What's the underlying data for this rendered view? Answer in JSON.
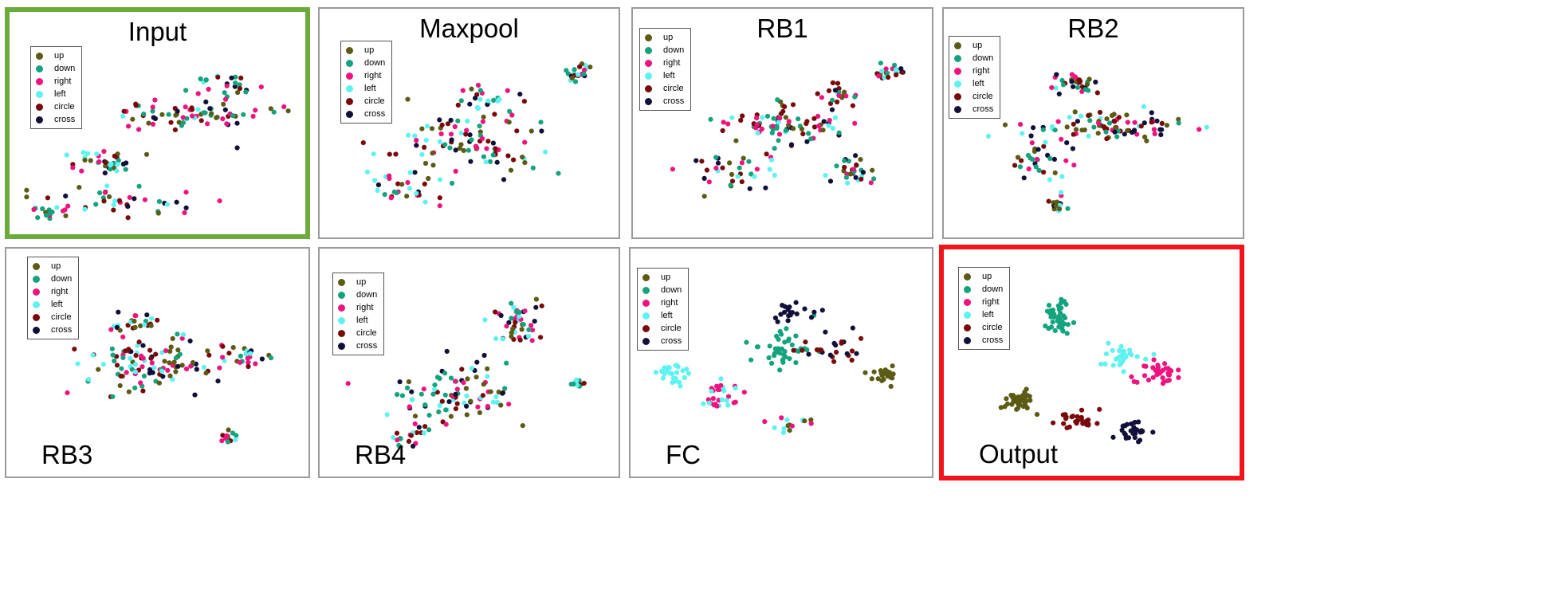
{
  "figure": {
    "class_colors": {
      "up": "#5c5a14",
      "down": "#14a37f",
      "right": "#f0137f",
      "left": "#5ff2f2",
      "circle": "#7a0a0a",
      "cross": "#10103a"
    },
    "highlight_colors": {
      "input": "#6aab3c",
      "output": "#f2141a"
    }
  },
  "chart_data": [
    {
      "type": "scatter",
      "title": "Input",
      "legend": [
        "up",
        "down",
        "right",
        "left",
        "circle",
        "cross"
      ],
      "legend_position": "top-left",
      "highlight": "input",
      "clusters": [
        {
          "cx": 0.35,
          "cy": 0.12,
          "sx": 0.3,
          "sy": 0.08,
          "n": 40,
          "mix": [
            "up",
            "down",
            "right",
            "left",
            "circle",
            "cross"
          ]
        },
        {
          "cx": 0.6,
          "cy": 0.6,
          "sx": 0.28,
          "sy": 0.09,
          "n": 70,
          "mix": [
            "up",
            "down",
            "right",
            "left",
            "circle",
            "cross"
          ]
        },
        {
          "cx": 0.3,
          "cy": 0.35,
          "sx": 0.12,
          "sy": 0.06,
          "n": 35,
          "mix": [
            "up",
            "down",
            "right",
            "left",
            "circle",
            "cross"
          ]
        },
        {
          "cx": 0.08,
          "cy": 0.05,
          "sx": 0.06,
          "sy": 0.03,
          "n": 15,
          "mix": [
            "up",
            "down",
            "right",
            "circle"
          ]
        },
        {
          "cx": 0.75,
          "cy": 0.78,
          "sx": 0.12,
          "sy": 0.06,
          "n": 25,
          "mix": [
            "up",
            "down",
            "right",
            "left",
            "circle",
            "cross"
          ]
        }
      ]
    },
    {
      "type": "scatter",
      "title": "Maxpool",
      "legend": [
        "up",
        "down",
        "right",
        "left",
        "circle",
        "cross"
      ],
      "legend_position": "top-left",
      "clusters": [
        {
          "cx": 0.9,
          "cy": 0.85,
          "sx": 0.05,
          "sy": 0.05,
          "n": 22,
          "mix": [
            "up",
            "down",
            "right",
            "left",
            "circle",
            "cross"
          ]
        },
        {
          "cx": 0.5,
          "cy": 0.45,
          "sx": 0.28,
          "sy": 0.16,
          "n": 90,
          "mix": [
            "up",
            "down",
            "right",
            "left",
            "circle",
            "cross"
          ]
        },
        {
          "cx": 0.25,
          "cy": 0.2,
          "sx": 0.15,
          "sy": 0.1,
          "n": 30,
          "mix": [
            "up",
            "down",
            "right",
            "left",
            "circle",
            "cross"
          ]
        },
        {
          "cx": 0.55,
          "cy": 0.7,
          "sx": 0.12,
          "sy": 0.08,
          "n": 25,
          "mix": [
            "up",
            "down",
            "right",
            "left",
            "circle",
            "cross"
          ]
        }
      ]
    },
    {
      "type": "scatter",
      "title": "RB1",
      "legend": [
        "up",
        "down",
        "right",
        "left",
        "circle",
        "cross"
      ],
      "legend_position": "top-left",
      "clusters": [
        {
          "cx": 0.9,
          "cy": 0.85,
          "sx": 0.06,
          "sy": 0.05,
          "n": 20,
          "mix": [
            "up",
            "down",
            "right",
            "left",
            "circle",
            "cross"
          ]
        },
        {
          "cx": 0.5,
          "cy": 0.55,
          "sx": 0.22,
          "sy": 0.12,
          "n": 80,
          "mix": [
            "up",
            "down",
            "right",
            "left",
            "circle",
            "cross"
          ]
        },
        {
          "cx": 0.78,
          "cy": 0.3,
          "sx": 0.1,
          "sy": 0.06,
          "n": 30,
          "mix": [
            "up",
            "down",
            "right",
            "left",
            "circle",
            "cross"
          ]
        },
        {
          "cx": 0.3,
          "cy": 0.3,
          "sx": 0.15,
          "sy": 0.1,
          "n": 35,
          "mix": [
            "up",
            "down",
            "right",
            "left",
            "circle",
            "cross"
          ]
        },
        {
          "cx": 0.7,
          "cy": 0.72,
          "sx": 0.08,
          "sy": 0.06,
          "n": 20,
          "mix": [
            "up",
            "down",
            "right",
            "left",
            "circle",
            "cross"
          ]
        }
      ]
    },
    {
      "type": "scatter",
      "title": "RB2",
      "legend": [
        "up",
        "down",
        "right",
        "left",
        "circle",
        "cross"
      ],
      "legend_position": "top-left",
      "clusters": [
        {
          "cx": 0.45,
          "cy": 0.78,
          "sx": 0.1,
          "sy": 0.05,
          "n": 30,
          "mix": [
            "up",
            "down",
            "right",
            "left",
            "circle",
            "cross"
          ]
        },
        {
          "cx": 0.55,
          "cy": 0.55,
          "sx": 0.3,
          "sy": 0.07,
          "n": 90,
          "mix": [
            "up",
            "down",
            "right",
            "left",
            "circle",
            "cross"
          ]
        },
        {
          "cx": 0.3,
          "cy": 0.35,
          "sx": 0.1,
          "sy": 0.08,
          "n": 30,
          "mix": [
            "up",
            "down",
            "right",
            "left",
            "circle",
            "cross"
          ]
        },
        {
          "cx": 0.37,
          "cy": 0.12,
          "sx": 0.04,
          "sy": 0.05,
          "n": 15,
          "mix": [
            "up",
            "down",
            "right",
            "left",
            "circle",
            "cross"
          ]
        }
      ]
    },
    {
      "type": "scatter",
      "title": "RB3",
      "legend": [
        "up",
        "down",
        "right",
        "left",
        "circle",
        "cross"
      ],
      "legend_position": "top-left",
      "clusters": [
        {
          "cx": 0.5,
          "cy": 0.55,
          "sx": 0.25,
          "sy": 0.14,
          "n": 110,
          "mix": [
            "up",
            "down",
            "right",
            "left",
            "circle",
            "cross"
          ]
        },
        {
          "cx": 0.4,
          "cy": 0.8,
          "sx": 0.1,
          "sy": 0.08,
          "n": 25,
          "mix": [
            "up",
            "down",
            "right",
            "left",
            "circle",
            "cross"
          ]
        },
        {
          "cx": 0.75,
          "cy": 0.15,
          "sx": 0.04,
          "sy": 0.04,
          "n": 12,
          "mix": [
            "up",
            "down",
            "right",
            "left",
            "circle",
            "cross"
          ]
        },
        {
          "cx": 0.82,
          "cy": 0.6,
          "sx": 0.1,
          "sy": 0.06,
          "n": 25,
          "mix": [
            "up",
            "down",
            "right",
            "left",
            "circle",
            "cross"
          ]
        }
      ]
    },
    {
      "type": "scatter",
      "title": "RB4",
      "legend": [
        "up",
        "down",
        "right",
        "left",
        "circle",
        "cross"
      ],
      "legend_position": "top-left",
      "clusters": [
        {
          "cx": 0.68,
          "cy": 0.78,
          "sx": 0.08,
          "sy": 0.1,
          "n": 45,
          "mix": [
            "up",
            "down",
            "right",
            "left",
            "circle",
            "cross"
          ]
        },
        {
          "cx": 0.45,
          "cy": 0.4,
          "sx": 0.2,
          "sy": 0.15,
          "n": 90,
          "mix": [
            "up",
            "down",
            "right",
            "left",
            "circle",
            "cross"
          ]
        },
        {
          "cx": 0.9,
          "cy": 0.45,
          "sx": 0.02,
          "sy": 0.03,
          "n": 10,
          "mix": [
            "left",
            "circle",
            "down"
          ]
        },
        {
          "cx": 0.3,
          "cy": 0.15,
          "sx": 0.1,
          "sy": 0.05,
          "n": 20,
          "mix": [
            "up",
            "down",
            "right",
            "left",
            "circle",
            "cross"
          ]
        }
      ]
    },
    {
      "type": "scatter",
      "title": "FC",
      "legend": [
        "up",
        "down",
        "right",
        "left",
        "circle",
        "cross"
      ],
      "legend_position": "top-left",
      "clusters": [
        {
          "cx": 0.1,
          "cy": 0.5,
          "sx": 0.06,
          "sy": 0.06,
          "n": 25,
          "mix": [
            "left"
          ]
        },
        {
          "cx": 0.28,
          "cy": 0.38,
          "sx": 0.08,
          "sy": 0.08,
          "n": 30,
          "mix": [
            "right",
            "left"
          ]
        },
        {
          "cx": 0.5,
          "cy": 0.65,
          "sx": 0.1,
          "sy": 0.1,
          "n": 40,
          "mix": [
            "down"
          ]
        },
        {
          "cx": 0.55,
          "cy": 0.85,
          "sx": 0.08,
          "sy": 0.05,
          "n": 20,
          "mix": [
            "cross"
          ]
        },
        {
          "cx": 0.7,
          "cy": 0.65,
          "sx": 0.1,
          "sy": 0.1,
          "n": 25,
          "mix": [
            "circle",
            "cross"
          ]
        },
        {
          "cx": 0.88,
          "cy": 0.5,
          "sx": 0.06,
          "sy": 0.06,
          "n": 20,
          "mix": [
            "up"
          ]
        },
        {
          "cx": 0.52,
          "cy": 0.22,
          "sx": 0.1,
          "sy": 0.08,
          "n": 15,
          "mix": [
            "up",
            "right",
            "left"
          ]
        }
      ]
    },
    {
      "type": "scatter",
      "title": "Output",
      "legend": [
        "up",
        "down",
        "right",
        "left",
        "circle",
        "cross"
      ],
      "legend_position": "top-left",
      "highlight": "output",
      "clusters": [
        {
          "cx": 0.38,
          "cy": 0.82,
          "sx": 0.04,
          "sy": 0.08,
          "n": 40,
          "mix": [
            "down"
          ]
        },
        {
          "cx": 0.23,
          "cy": 0.36,
          "sx": 0.05,
          "sy": 0.06,
          "n": 40,
          "mix": [
            "up"
          ]
        },
        {
          "cx": 0.75,
          "cy": 0.5,
          "sx": 0.06,
          "sy": 0.05,
          "n": 35,
          "mix": [
            "right"
          ]
        },
        {
          "cx": 0.6,
          "cy": 0.6,
          "sx": 0.1,
          "sy": 0.05,
          "n": 30,
          "mix": [
            "left"
          ]
        },
        {
          "cx": 0.45,
          "cy": 0.25,
          "sx": 0.06,
          "sy": 0.05,
          "n": 25,
          "mix": [
            "circle"
          ]
        },
        {
          "cx": 0.66,
          "cy": 0.18,
          "sx": 0.05,
          "sy": 0.05,
          "n": 30,
          "mix": [
            "cross"
          ]
        }
      ]
    }
  ]
}
